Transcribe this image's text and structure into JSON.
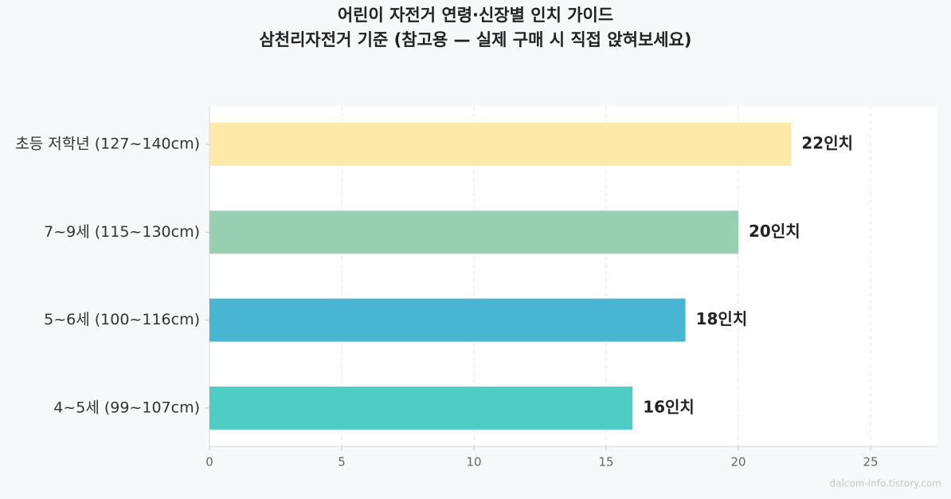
{
  "chart_data": {
    "type": "bar",
    "orientation": "horizontal",
    "title": "어린이 자전거 연령·신장별 인치 가이드",
    "subtitle": "삼천리자전거 기준 (참고용 — 실제 구매 시 직접 앉혀보세요)",
    "categories": [
      "초등 저학년 (127~140cm)",
      "7~9세 (115~130cm)",
      "5~6세 (100~116cm)",
      "4~5세 (99~107cm)"
    ],
    "values": [
      22,
      20,
      18,
      16
    ],
    "value_labels": [
      "22인치",
      "20인치",
      "18인치",
      "16인치"
    ],
    "colors": [
      "#ffe9a8",
      "#98cfb3",
      "#48b5d2",
      "#4ecdc4"
    ],
    "xlim": [
      0,
      27.5
    ],
    "xticks": [
      0,
      5,
      10,
      15,
      20,
      25
    ],
    "grid": true,
    "watermark": "dalcom-info.tistory.com"
  }
}
